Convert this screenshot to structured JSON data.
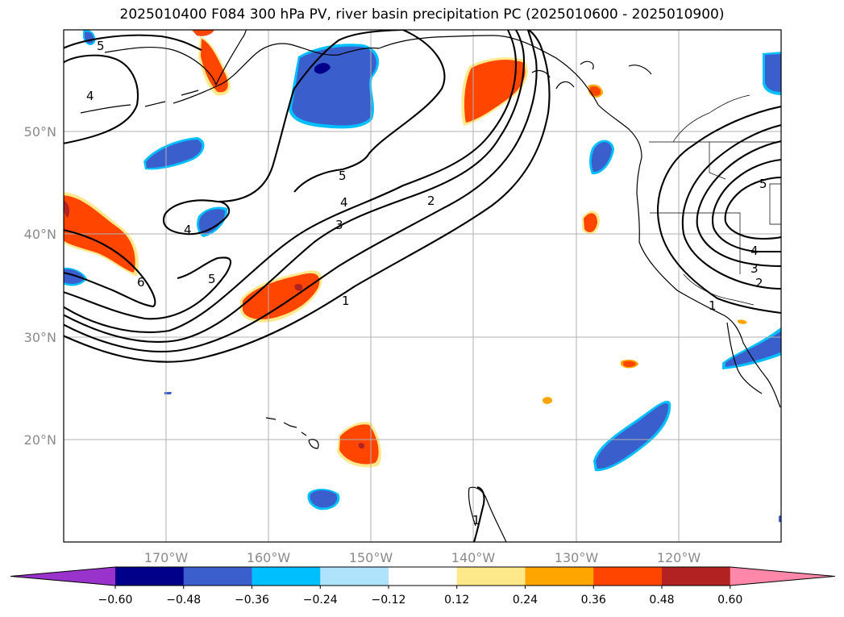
{
  "title": "2025010400 F084 300 hPa PV, river basin precipitation PC (2025010600 - 2025010900)",
  "map": {
    "lon_labels": [
      "170°W",
      "160°W",
      "150°W",
      "140°W",
      "130°W",
      "120°W"
    ],
    "lat_labels": [
      "50°N",
      "40°N",
      "30°N",
      "20°N"
    ],
    "gridlines": true,
    "pv_contour_labels": [
      "5",
      "4",
      "5",
      "4",
      "3",
      "2",
      "4",
      "6",
      "5",
      "1",
      "1",
      "5",
      "4",
      "3",
      "2",
      "1"
    ]
  },
  "colorbar": {
    "ticks": [
      "−0.60",
      "−0.48",
      "−0.36",
      "−0.24",
      "−0.12",
      "0.12",
      "0.24",
      "0.36",
      "0.48",
      "0.60"
    ],
    "colors": [
      "#9933cc",
      "#00008b",
      "#3a5fcd",
      "#00bfff",
      "#aee3fb",
      "#ffffff",
      "#ffe88a",
      "#ffa500",
      "#ff4500",
      "#b22222",
      "#ff88aa"
    ],
    "extend": "both"
  }
}
